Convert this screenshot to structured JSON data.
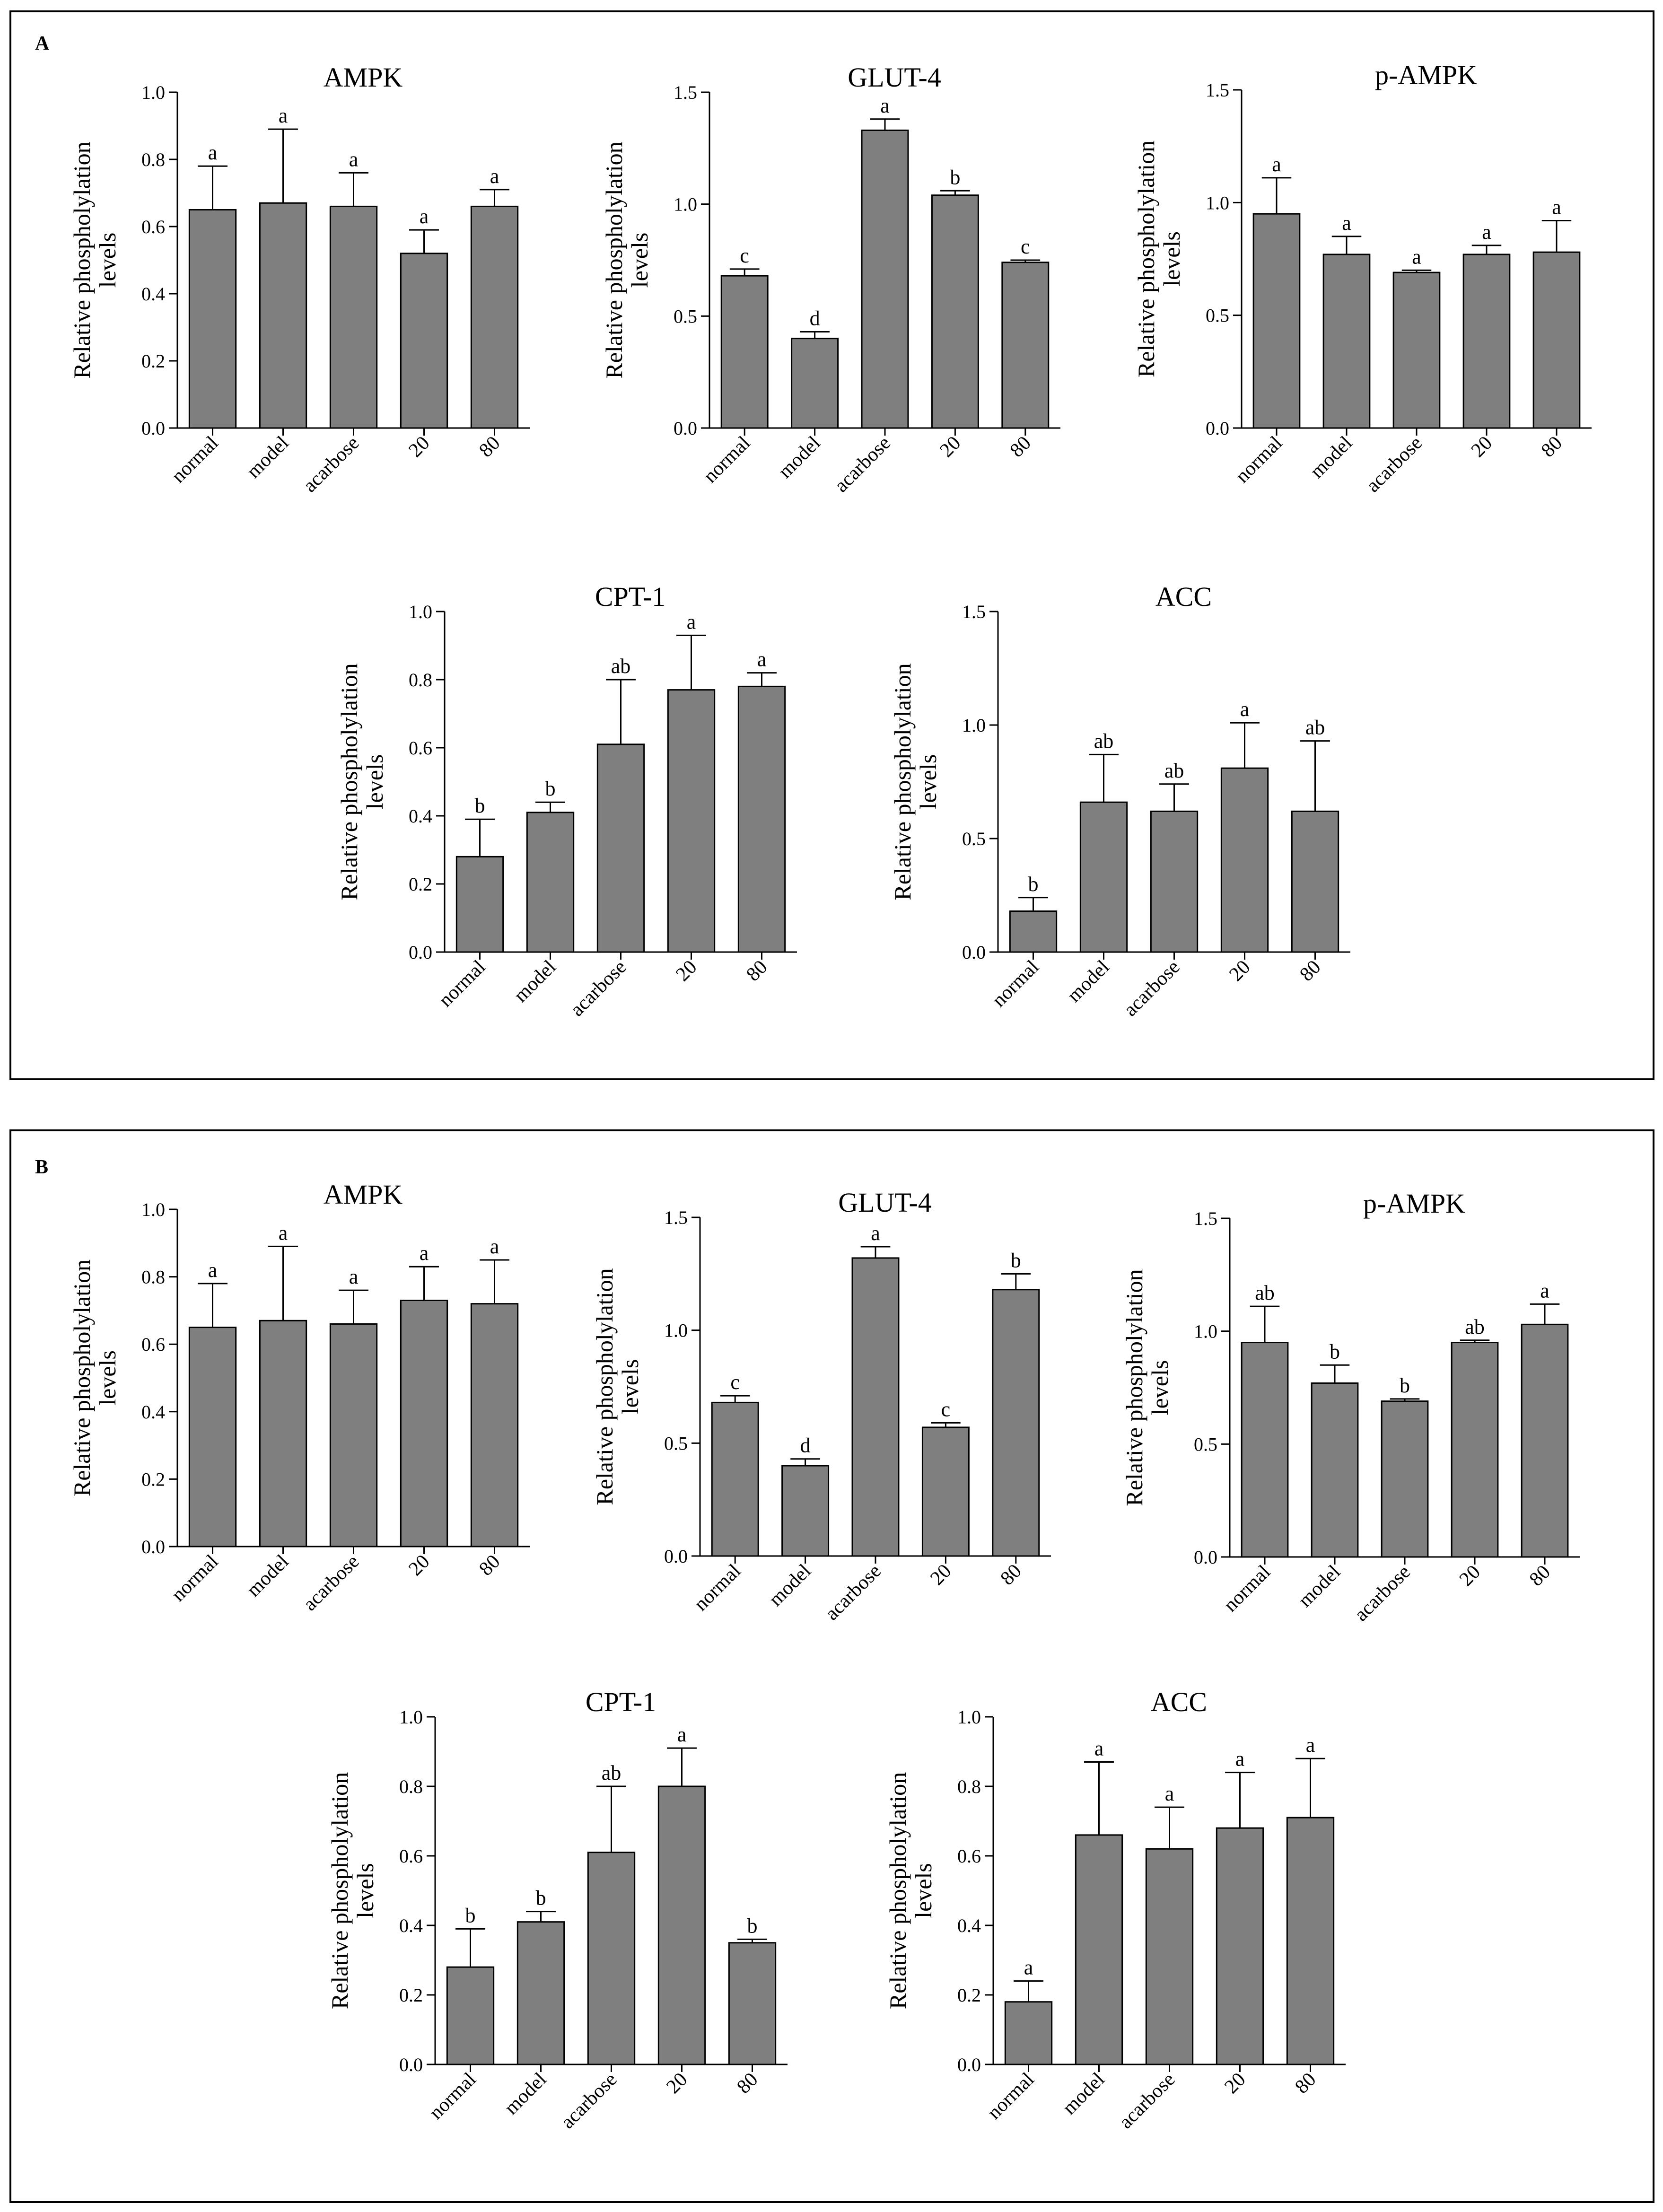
{
  "figure": {
    "panels": [
      {
        "label": "A"
      },
      {
        "label": "B"
      }
    ]
  },
  "chart_data": [
    {
      "panel": "A",
      "type": "bar",
      "title": "AMPK",
      "xlabel": "",
      "ylabel": "Relative phospholylation levels",
      "ylabel_lines": [
        "Relative phospholylation",
        "levels"
      ],
      "categories": [
        "normal",
        "model",
        "acarbose",
        "20",
        "80"
      ],
      "values": [
        0.65,
        0.67,
        0.66,
        0.52,
        0.66
      ],
      "errors": [
        0.13,
        0.22,
        0.1,
        0.07,
        0.05
      ],
      "letters": [
        "a",
        "a",
        "a",
        "a",
        "a"
      ],
      "ylim": [
        0,
        1.0
      ],
      "yticks": [
        "0.0",
        "0.2",
        "0.4",
        "0.6",
        "0.8",
        "1.0"
      ]
    },
    {
      "panel": "A",
      "type": "bar",
      "title": "GLUT-4",
      "xlabel": "",
      "ylabel": "Relative phospholylation levels",
      "ylabel_lines": [
        "Relative phospholylation",
        "levels"
      ],
      "categories": [
        "normal",
        "model",
        "acarbose",
        "20",
        "80"
      ],
      "values": [
        0.68,
        0.4,
        1.33,
        1.04,
        0.74
      ],
      "errors": [
        0.03,
        0.03,
        0.05,
        0.02,
        0.01
      ],
      "letters": [
        "c",
        "d",
        "a",
        "b",
        "c"
      ],
      "ylim": [
        0,
        1.5
      ],
      "yticks": [
        "0.0",
        "0.5",
        "1.0",
        "1.5"
      ]
    },
    {
      "panel": "A",
      "type": "bar",
      "title": "p-AMPK",
      "xlabel": "",
      "ylabel": "Relative phospholylation levels",
      "ylabel_lines": [
        "Relative phospholylation",
        "levels"
      ],
      "categories": [
        "normal",
        "model",
        "acarbose",
        "20",
        "80"
      ],
      "values": [
        0.95,
        0.77,
        0.69,
        0.77,
        0.78
      ],
      "errors": [
        0.16,
        0.08,
        0.01,
        0.04,
        0.14
      ],
      "letters": [
        "a",
        "a",
        "a",
        "a",
        "a"
      ],
      "ylim": [
        0,
        1.5
      ],
      "yticks": [
        "0.0",
        "0.5",
        "1.0",
        "1.5"
      ]
    },
    {
      "panel": "A",
      "type": "bar",
      "title": "CPT-1",
      "xlabel": "",
      "ylabel": "Relative phospholylation levels",
      "ylabel_lines": [
        "Relative phospholylation",
        "levels"
      ],
      "categories": [
        "normal",
        "model",
        "acarbose",
        "20",
        "80"
      ],
      "values": [
        0.28,
        0.41,
        0.61,
        0.77,
        0.78
      ],
      "errors": [
        0.11,
        0.03,
        0.19,
        0.16,
        0.04
      ],
      "letters": [
        "b",
        "b",
        "ab",
        "a",
        "a"
      ],
      "ylim": [
        0,
        1.0
      ],
      "yticks": [
        "0.0",
        "0.2",
        "0.4",
        "0.6",
        "0.8",
        "1.0"
      ]
    },
    {
      "panel": "A",
      "type": "bar",
      "title": "ACC",
      "xlabel": "",
      "ylabel": "Relative phospholylation levels",
      "ylabel_lines": [
        "Relative phospholylation",
        "levels"
      ],
      "categories": [
        "normal",
        "model",
        "acarbose",
        "20",
        "80"
      ],
      "values": [
        0.18,
        0.66,
        0.62,
        0.81,
        0.62
      ],
      "errors": [
        0.06,
        0.21,
        0.12,
        0.2,
        0.31
      ],
      "letters": [
        "b",
        "ab",
        "ab",
        "a",
        "ab"
      ],
      "ylim": [
        0,
        1.5
      ],
      "yticks": [
        "0.0",
        "0.5",
        "1.0",
        "1.5"
      ]
    },
    {
      "panel": "B",
      "type": "bar",
      "title": "AMPK",
      "xlabel": "",
      "ylabel": "Relative phospholylation levels",
      "ylabel_lines": [
        "Relative phospholylation",
        "levels"
      ],
      "categories": [
        "normal",
        "model",
        "acarbose",
        "20",
        "80"
      ],
      "values": [
        0.65,
        0.67,
        0.66,
        0.73,
        0.72
      ],
      "errors": [
        0.13,
        0.22,
        0.1,
        0.1,
        0.13
      ],
      "letters": [
        "a",
        "a",
        "a",
        "a",
        "a"
      ],
      "ylim": [
        0,
        1.0
      ],
      "yticks": [
        "0.0",
        "0.2",
        "0.4",
        "0.6",
        "0.8",
        "1.0"
      ]
    },
    {
      "panel": "B",
      "type": "bar",
      "title": "GLUT-4",
      "xlabel": "",
      "ylabel": "Relative phospholylation levels",
      "ylabel_lines": [
        "Relative phospholylation",
        "levels"
      ],
      "categories": [
        "normal",
        "model",
        "acarbose",
        "20",
        "80"
      ],
      "values": [
        0.68,
        0.4,
        1.32,
        0.57,
        1.18
      ],
      "errors": [
        0.03,
        0.03,
        0.05,
        0.02,
        0.07
      ],
      "letters": [
        "c",
        "d",
        "a",
        "c",
        "b"
      ],
      "ylim": [
        0,
        1.5
      ],
      "yticks": [
        "0.0",
        "0.5",
        "1.0",
        "1.5"
      ]
    },
    {
      "panel": "B",
      "type": "bar",
      "title": "p-AMPK",
      "xlabel": "",
      "ylabel": "Relative phospholylation levels",
      "ylabel_lines": [
        "Relative phospholylation",
        "levels"
      ],
      "categories": [
        "normal",
        "model",
        "acarbose",
        "20",
        "80"
      ],
      "values": [
        0.95,
        0.77,
        0.69,
        0.95,
        1.03
      ],
      "errors": [
        0.16,
        0.08,
        0.01,
        0.01,
        0.09
      ],
      "letters": [
        "ab",
        "b",
        "b",
        "ab",
        "a"
      ],
      "ylim": [
        0,
        1.5
      ],
      "yticks": [
        "0.0",
        "0.5",
        "1.0",
        "1.5"
      ]
    },
    {
      "panel": "B",
      "type": "bar",
      "title": "CPT-1",
      "xlabel": "",
      "ylabel": "Relative phospholylation levels",
      "ylabel_lines": [
        "Relative phospholylation",
        "levels"
      ],
      "categories": [
        "normal",
        "model",
        "acarbose",
        "20",
        "80"
      ],
      "values": [
        0.28,
        0.41,
        0.61,
        0.8,
        0.35
      ],
      "errors": [
        0.11,
        0.03,
        0.19,
        0.11,
        0.01
      ],
      "letters": [
        "b",
        "b",
        "ab",
        "a",
        "b"
      ],
      "ylim": [
        0,
        1.0
      ],
      "yticks": [
        "0.0",
        "0.2",
        "0.4",
        "0.6",
        "0.8",
        "1.0"
      ]
    },
    {
      "panel": "B",
      "type": "bar",
      "title": "ACC",
      "xlabel": "",
      "ylabel": "Relative phospholylation levels",
      "ylabel_lines": [
        "Relative phospholylation",
        "levels"
      ],
      "categories": [
        "normal",
        "model",
        "acarbose",
        "20",
        "80"
      ],
      "values": [
        0.18,
        0.66,
        0.62,
        0.68,
        0.71
      ],
      "errors": [
        0.06,
        0.21,
        0.12,
        0.16,
        0.17
      ],
      "letters": [
        "a",
        "a",
        "a",
        "a",
        "a"
      ],
      "ylim": [
        0,
        1.0
      ],
      "yticks": [
        "0.0",
        "0.2",
        "0.4",
        "0.6",
        "0.8",
        "1.0"
      ]
    }
  ]
}
